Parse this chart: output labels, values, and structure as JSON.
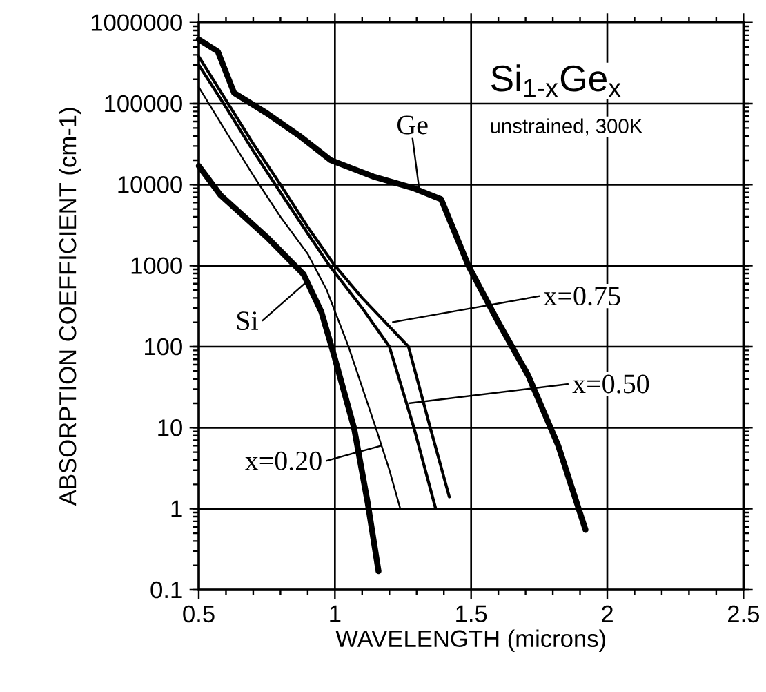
{
  "chart_data": {
    "type": "line",
    "xlabel": "WAVELENGTH (microns)",
    "ylabel": "ABSORPTION COEFFICIENT (cm-1)",
    "log": "y",
    "grid": true,
    "marker": "none",
    "line_style": "solid",
    "xlim": [
      0.5,
      2.5
    ],
    "xticks": [
      0.5,
      1,
      1.5,
      2,
      2.5
    ],
    "ylim": [
      0.1,
      1000000
    ],
    "yticks": [
      0.1,
      1,
      10,
      100,
      1000,
      10000,
      100000,
      1000000
    ],
    "series": [
      {
        "color": "#000000",
        "x": [
          0.5,
          0.57,
          0.63,
          0.75,
          0.87,
          0.985,
          1.14,
          1.29,
          1.39,
          1.49,
          1.6,
          1.71,
          1.82,
          1.92
        ],
        "values": [
          620000,
          440000,
          135000,
          76000,
          40000,
          20000,
          12600,
          9000,
          6600,
          1000,
          200,
          44,
          6,
          0.55
        ]
      },
      {
        "color": "#000000",
        "x": [
          0.5,
          0.58,
          0.75,
          0.885,
          0.95,
          0.995,
          1.07,
          1.12,
          1.16
        ],
        "values": [
          17000,
          7400,
          2250,
          780,
          270,
          82,
          10,
          1.2,
          0.17
        ]
      },
      {
        "color": "#000000",
        "x": [
          0.5,
          0.6,
          0.7,
          0.8,
          0.9,
          1.0,
          1.1,
          1.27,
          1.35,
          1.42
        ],
        "values": [
          380000,
          110000,
          32000,
          10000,
          3000,
          1000,
          400,
          100,
          10,
          1.4
        ]
      },
      {
        "color": "#000000",
        "x": [
          0.5,
          0.6,
          0.7,
          0.8,
          0.9,
          0.98,
          1.1,
          1.2,
          1.29,
          1.37
        ],
        "values": [
          300000,
          90000,
          26000,
          8000,
          2500,
          1000,
          300,
          100,
          10,
          1
        ]
      },
      {
        "color": "#000000",
        "x": [
          0.5,
          0.6,
          0.7,
          0.8,
          0.9,
          0.97,
          1.05,
          1.15,
          1.2,
          1.24
        ],
        "values": [
          160000,
          45000,
          13000,
          4000,
          1400,
          500,
          100,
          10,
          3,
          1
        ]
      }
    ],
    "annotations": [
      "Si$_{1-x}$Ge$_{x}$",
      "unstrained, 300K",
      {
        "text": "Ge",
        "x": 1.31,
        "y": 8500
      },
      {
        "text": "Si",
        "x": 0.9,
        "y": 650
      },
      {
        "text": "x=0.75",
        "x": 1.21,
        "y": 200
      },
      {
        "text": "x=0.50",
        "x": 1.27,
        "y": 20
      },
      {
        "text": "x=0.20",
        "x": 1.17,
        "y": 6
      }
    ]
  }
}
